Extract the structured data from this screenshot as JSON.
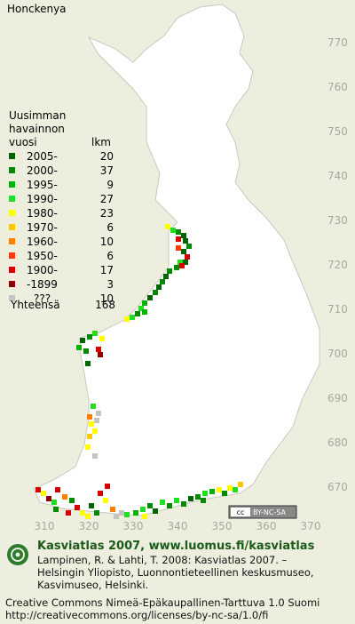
{
  "title": "Honckenya",
  "legend": {
    "heading": [
      "Uusimman",
      "havainnon",
      "vuosi"
    ],
    "count_heading": "lkm",
    "entries": [
      {
        "label": "2005-",
        "count": 20,
        "color": "#006400"
      },
      {
        "label": "2000-",
        "count": 37,
        "color": "#008a00"
      },
      {
        "label": "1995-",
        "count": 9,
        "color": "#00b400"
      },
      {
        "label": "1990-",
        "count": 27,
        "color": "#22dd22"
      },
      {
        "label": "1980-",
        "count": 23,
        "color": "#ffff00"
      },
      {
        "label": "1970-",
        "count": 6,
        "color": "#ffc800"
      },
      {
        "label": "1960-",
        "count": 10,
        "color": "#ff7f00"
      },
      {
        "label": "1950-",
        "count": 6,
        "color": "#ff3c00"
      },
      {
        "label": "1900-",
        "count": 17,
        "color": "#d40000"
      },
      {
        "label": "-1899",
        "count": 3,
        "color": "#8c0000"
      },
      {
        "label": "???",
        "count": 10,
        "color": "#c4c4c4"
      }
    ],
    "total_label": "Yhteensä",
    "total": 168
  },
  "y_axis_labels": [
    770,
    760,
    750,
    740,
    730,
    720,
    710,
    700,
    690,
    680,
    670
  ],
  "x_axis_labels": [
    310,
    320,
    330,
    340,
    350,
    360,
    370
  ],
  "badge": {
    "cc": "cc",
    "terms": "BY-NC-SA"
  },
  "footer": {
    "site": "Kasviatlas 2007, www.luomus.fi/kasviatlas",
    "citation": [
      "Lampinen, R. & Lahti, T. 2008: Kasviatlas 2007. –",
      "Helsingin Yliopisto, Luonnontieteellinen keskusmuseo,",
      "Kasvimuseo, Helsinki."
    ],
    "license": [
      "Creative Commons Nimeä-Epäkaupallinen-Tarttuva 1.0 Suomi",
      "http://creativecommons.org/licenses/by-nc-sa/1.0/fi"
    ]
  }
}
